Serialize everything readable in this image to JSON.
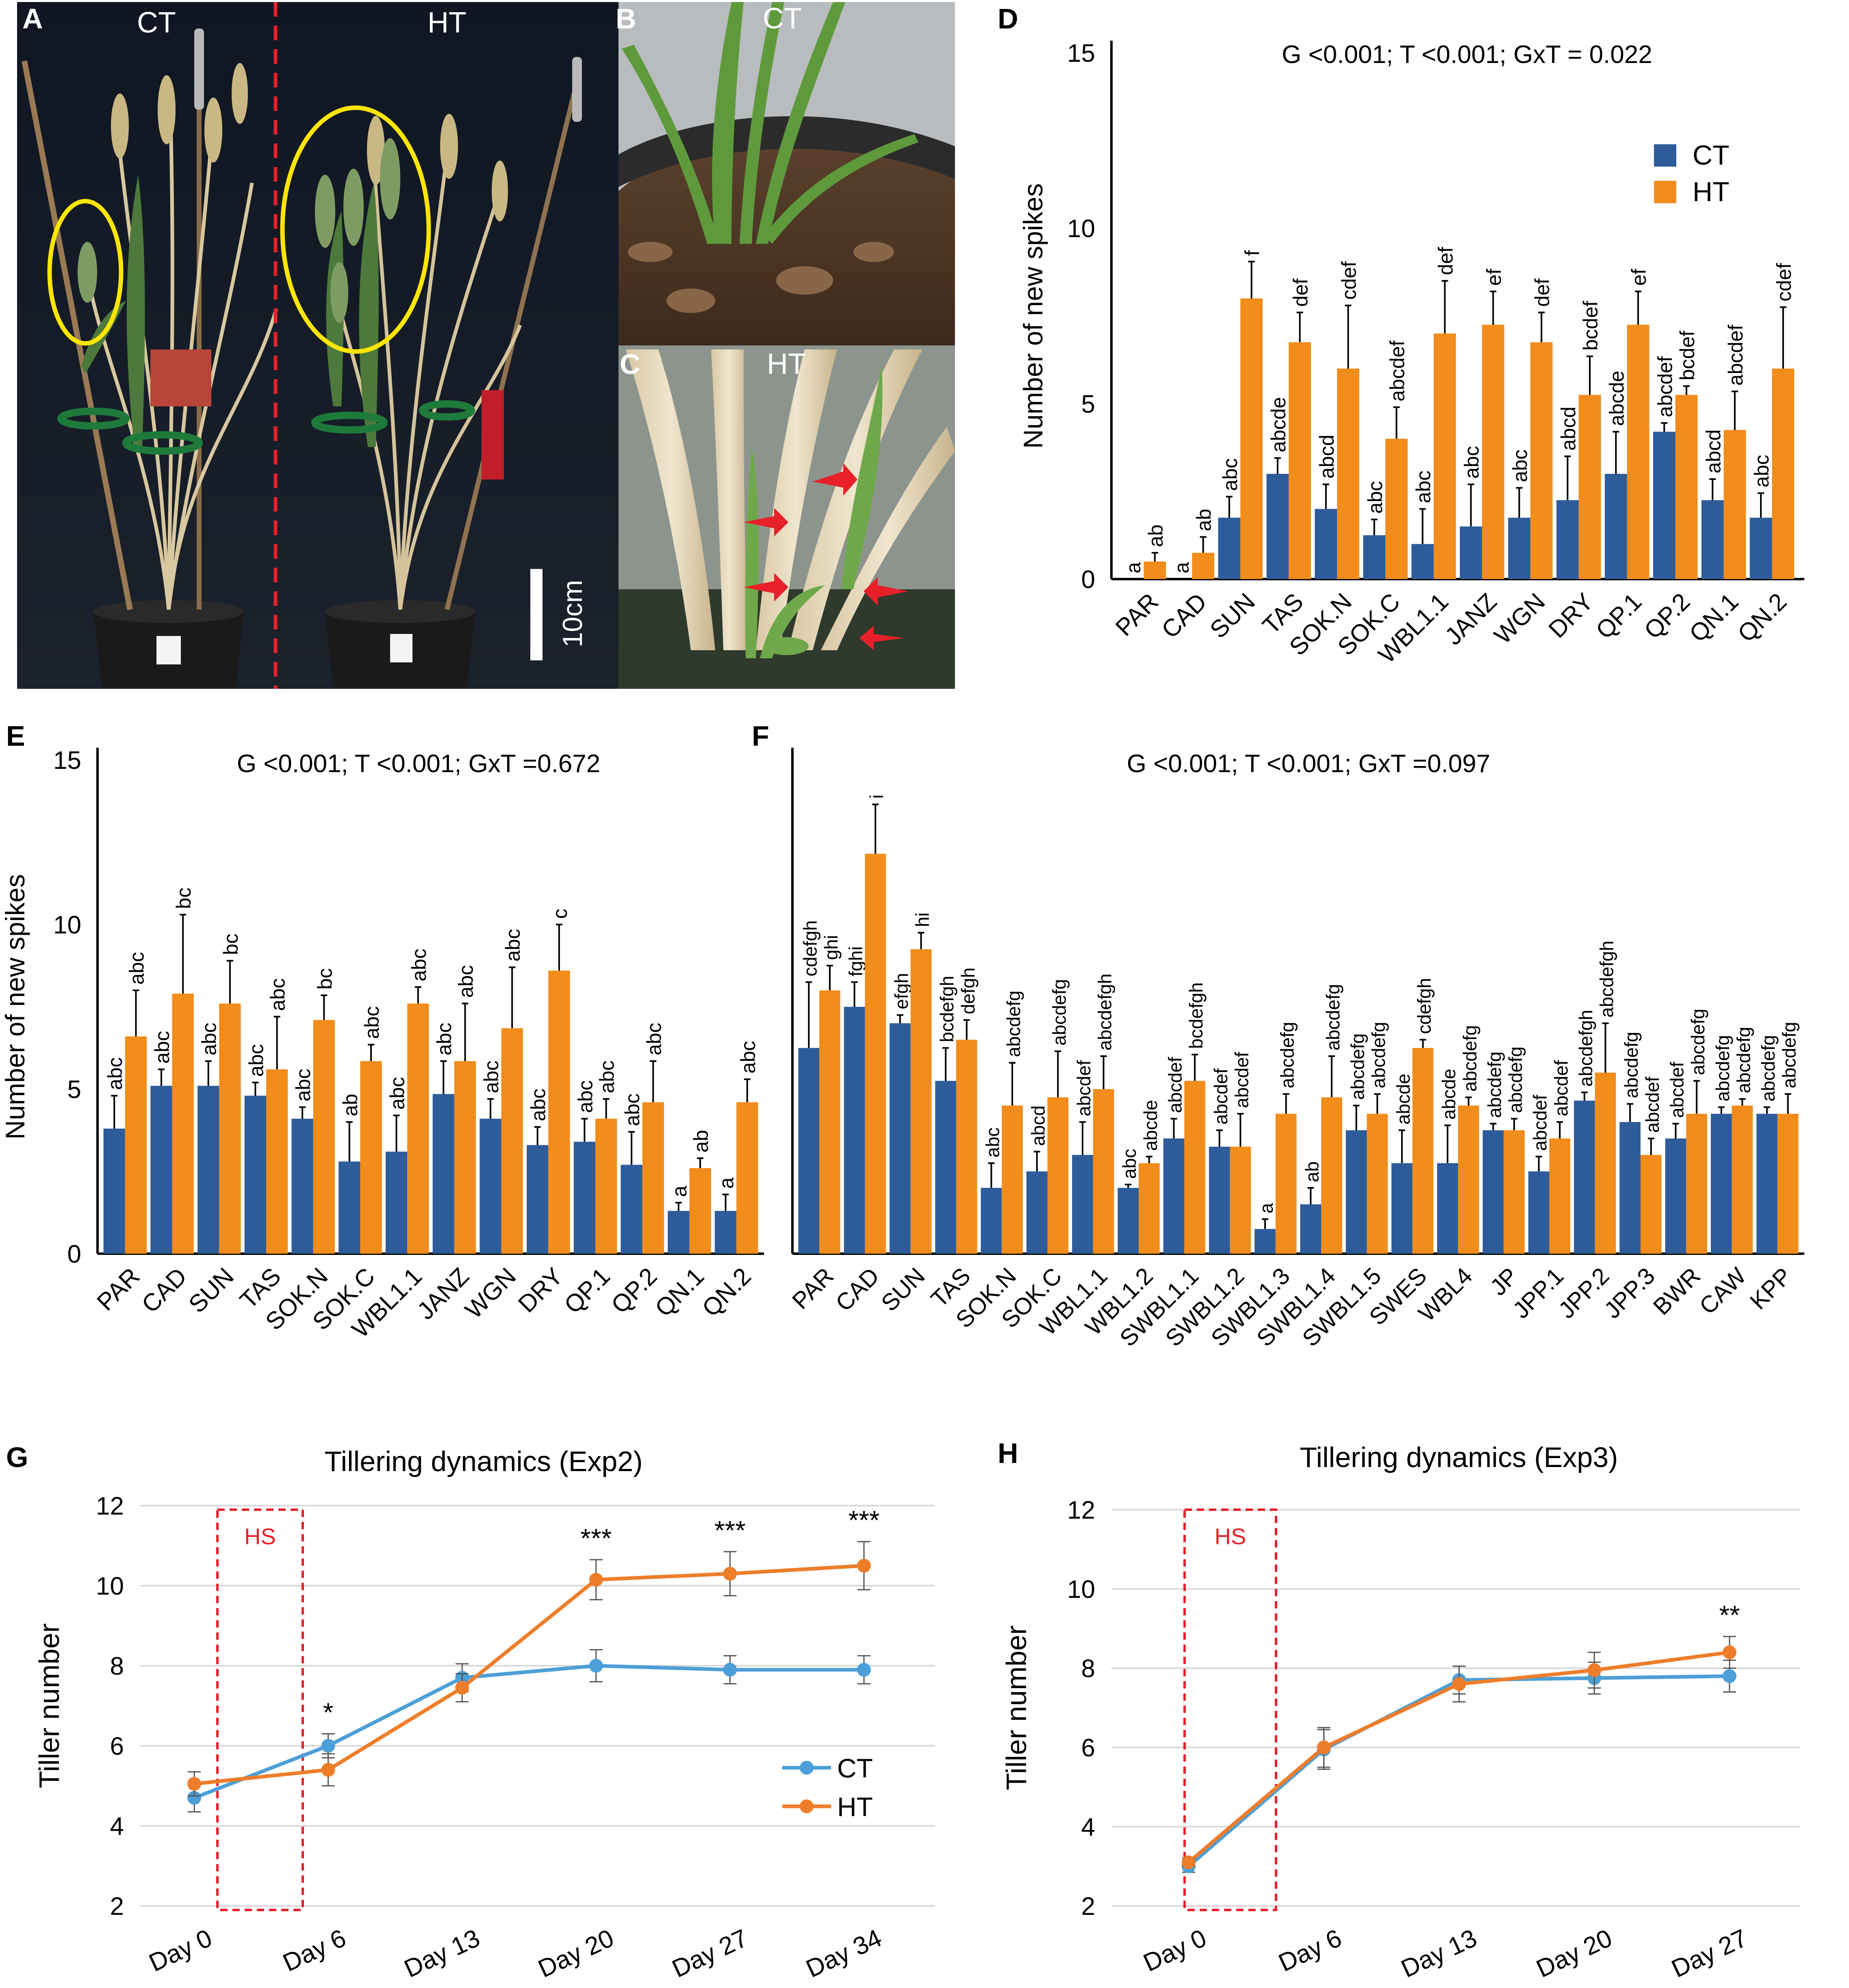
{
  "panel_letters": [
    "A",
    "B",
    "C",
    "D",
    "E",
    "F",
    "G",
    "H"
  ],
  "photos": {
    "A": {
      "label_left": "CT",
      "label_right": "HT",
      "scale_bar": "10cm"
    },
    "B": {
      "label": "CT"
    },
    "C": {
      "label": "HT"
    }
  },
  "colors": {
    "CT_bar": "#2e5c9a",
    "HT_bar": "#f28c1a",
    "CT_line": "#4c9fd8",
    "HT_line": "#ee7d2a",
    "hs_box": "#e8202a"
  },
  "chart_data": [
    {
      "panel": "D",
      "type": "bar",
      "title": "G <0.001; T <0.001; GxT = 0.022",
      "ylabel": "Number of new spikes",
      "ylim": [
        0,
        15
      ],
      "yticks": [
        0,
        5,
        10,
        15
      ],
      "legend": [
        "CT",
        "HT"
      ],
      "categories": [
        "PAR",
        "CAD",
        "SUN",
        "TAS",
        "SOK.N",
        "SOK.C",
        "WBL1.1",
        "JANZ",
        "WGN",
        "DRY",
        "QP.1",
        "QP.2",
        "QN.1",
        "QN.2"
      ],
      "series": [
        {
          "name": "CT",
          "values": [
            0,
            0,
            1.75,
            3,
            2,
            1.25,
            1,
            1.5,
            1.75,
            2.25,
            3,
            4.2,
            2.25,
            1.75
          ],
          "errors": [
            0,
            0,
            0.6,
            0.45,
            0.7,
            0.45,
            1,
            1.2,
            0.85,
            1.25,
            1.2,
            0.25,
            0.6,
            0.7
          ],
          "labels": [
            "a",
            "a",
            "abc",
            "abcde",
            "abcd",
            "abc",
            "abc",
            "abc",
            "abc",
            "abcd",
            "abcde",
            "abcdef",
            "abcd",
            "abc"
          ]
        },
        {
          "name": "HT",
          "values": [
            0.5,
            0.75,
            8,
            6.75,
            6,
            4,
            7,
            7.25,
            6.75,
            5.25,
            7.25,
            5.25,
            4.25,
            6
          ],
          "errors": [
            0.25,
            0.45,
            1.05,
            0.85,
            1.8,
            0.9,
            1.5,
            0.95,
            0.85,
            1.1,
            0.95,
            0.25,
            1.1,
            1.75
          ],
          "labels": [
            "ab",
            "ab",
            "f",
            "def",
            "cdef",
            "abcdef",
            "def",
            "ef",
            "def",
            "bcdef",
            "ef",
            "bcdef",
            "abcdef",
            "cdef"
          ]
        }
      ]
    },
    {
      "panel": "E",
      "type": "bar",
      "title": "G <0.001; T <0.001; GxT =0.672",
      "ylabel": "Number of new spikes",
      "ylim": [
        0,
        15
      ],
      "yticks": [
        0,
        5,
        10,
        15
      ],
      "categories": [
        "PAR",
        "CAD",
        "SUN",
        "TAS",
        "SOK.N",
        "SOK.C",
        "WBL1.1",
        "JANZ",
        "WGN",
        "DRY",
        "QP.1",
        "QP.2",
        "QN.1",
        "QN.2"
      ],
      "series": [
        {
          "name": "CT",
          "values": [
            3.8,
            5.1,
            5.1,
            4.8,
            4.1,
            2.8,
            3.1,
            4.85,
            4.1,
            3.3,
            3.4,
            2.7,
            1.3,
            1.3
          ],
          "errors": [
            1,
            0.5,
            0.75,
            0.4,
            0.35,
            1.2,
            1.1,
            1,
            0.6,
            0.55,
            0.7,
            1,
            0.25,
            0.5
          ],
          "labels": [
            "abc",
            "abc",
            "abc",
            "abc",
            "abc",
            "ab",
            "abc",
            "abc",
            "abc",
            "abc",
            "abc",
            "abc",
            "a",
            "a"
          ]
        },
        {
          "name": "HT",
          "values": [
            6.6,
            7.9,
            7.6,
            5.6,
            7.1,
            5.85,
            7.6,
            5.85,
            6.85,
            8.6,
            4.1,
            4.6,
            2.6,
            4.6
          ],
          "errors": [
            1.4,
            2.4,
            1.3,
            1.6,
            0.75,
            0.5,
            0.5,
            1.75,
            1.85,
            1.4,
            0.6,
            1.25,
            0.3,
            0.7
          ],
          "labels": [
            "abc",
            "bc",
            "bc",
            "abc",
            "bc",
            "abc",
            "abc",
            "abc",
            "abc",
            "c",
            "abc",
            "abc",
            "ab",
            "abc"
          ]
        }
      ]
    },
    {
      "panel": "F",
      "type": "bar",
      "title": "G <0.001; T <0.001; GxT =0.097",
      "ylim": [
        0,
        15
      ],
      "categories": [
        "PAR",
        "CAD",
        "SUN",
        "TAS",
        "SOK.N",
        "SOK.C",
        "WBL1.1",
        "WBL1.2",
        "SWBL1.1",
        "SWBL1.2",
        "SWBL1.3",
        "SWBL1.4",
        "SWBL1.5",
        "SWES",
        "WBL4",
        "JP",
        "JPP.1",
        "JPP.2",
        "JPP.3",
        "BWR",
        "CAW",
        "KPP"
      ],
      "series": [
        {
          "name": "CT",
          "values": [
            6.25,
            7.5,
            7,
            5.25,
            2,
            2.5,
            3,
            2,
            3.5,
            3.25,
            0.75,
            1.5,
            3.75,
            2.75,
            2.75,
            3.75,
            2.5,
            4.65,
            4,
            3.5,
            4.25,
            4.25
          ],
          "errors": [
            2,
            0.75,
            0.25,
            1,
            0.75,
            0.6,
            1,
            0.1,
            0.6,
            0.5,
            0.3,
            0.5,
            0.75,
            1,
            1.15,
            0.2,
            0.45,
            0.25,
            0.55,
            0.45,
            0.2,
            0.2
          ],
          "labels": [
            "cdefgh",
            "fghi",
            "efgh",
            "bcdefgh",
            "abc",
            "abcd",
            "abcdef",
            "abc",
            "abcdef",
            "abcdef",
            "a",
            "ab",
            "abcdefg",
            "abcde",
            "abcde",
            "abcdefg",
            "abcdef",
            "abcdefgh",
            "abcdefg",
            "abcdef",
            "abcdefg",
            "abcdefg"
          ]
        },
        {
          "name": "HT",
          "values": [
            8,
            12.15,
            9.25,
            6.5,
            4.5,
            4.75,
            5,
            2.75,
            5.25,
            3.25,
            4.25,
            4.75,
            4.25,
            6.25,
            4.5,
            3.75,
            3.5,
            5.5,
            3,
            4.25,
            4.5,
            4.25
          ],
          "errors": [
            0.75,
            1.5,
            0.5,
            0.6,
            1.3,
            1.4,
            1,
            0.2,
            0.8,
            1,
            0.6,
            1.25,
            0.6,
            0.25,
            0.25,
            0.35,
            0.5,
            1.5,
            0.5,
            1,
            0.2,
            0.6
          ],
          "labels": [
            "ghi",
            "i",
            "hi",
            "defgh",
            "abcdefg",
            "abcdefg",
            "abcdefgh",
            "abcde",
            "bcdefgh",
            "abcdef",
            "abcdefg",
            "abcdefg",
            "abcdefg",
            "cdefgh",
            "abcdefg",
            "abcdefg",
            "abcdef",
            "abcdefgh",
            "abcdef",
            "abcdefg",
            "abcdefg",
            "abcdefg"
          ]
        }
      ]
    },
    {
      "panel": "G",
      "type": "line",
      "title": "Tillering dynamics (Exp2)",
      "ylabel": "Tiller number",
      "ylim": [
        2,
        12
      ],
      "yticks": [
        2,
        4,
        6,
        8,
        10,
        12
      ],
      "categories": [
        "Day 0",
        "Day 6",
        "Day 13",
        "Day 20",
        "Day 27",
        "Day 34"
      ],
      "legend": [
        "CT",
        "HT"
      ],
      "hs_label": "HS",
      "series": [
        {
          "name": "CT",
          "values": [
            4.7,
            6,
            7.7,
            8,
            7.9,
            7.9
          ],
          "errors": [
            0.35,
            0.3,
            0.35,
            0.4,
            0.35,
            0.35
          ]
        },
        {
          "name": "HT",
          "values": [
            5.05,
            5.4,
            7.45,
            10.15,
            10.3,
            10.5
          ],
          "errors": [
            0.3,
            0.4,
            0.35,
            0.5,
            0.55,
            0.6
          ]
        }
      ],
      "significance": [
        "",
        "*",
        "",
        "***",
        "***",
        "***"
      ]
    },
    {
      "panel": "H",
      "type": "line",
      "title": "Tillering dynamics (Exp3)",
      "ylabel": "Tiller number",
      "ylim": [
        2,
        12
      ],
      "yticks": [
        2,
        4,
        6,
        8,
        10,
        12
      ],
      "categories": [
        "Day 0",
        "Day 6",
        "Day 13",
        "Day 20",
        "Day 27"
      ],
      "hs_label": "HS",
      "series": [
        {
          "name": "CT",
          "values": [
            3,
            5.95,
            7.7,
            7.75,
            7.8
          ],
          "errors": [
            0.15,
            0.5,
            0.35,
            0.4,
            0.4
          ]
        },
        {
          "name": "HT",
          "values": [
            3.1,
            6,
            7.6,
            7.95,
            8.4
          ],
          "errors": [
            0.1,
            0.5,
            0.45,
            0.45,
            0.4
          ]
        }
      ],
      "significance": [
        "",
        "",
        "",
        "",
        "**"
      ]
    }
  ]
}
